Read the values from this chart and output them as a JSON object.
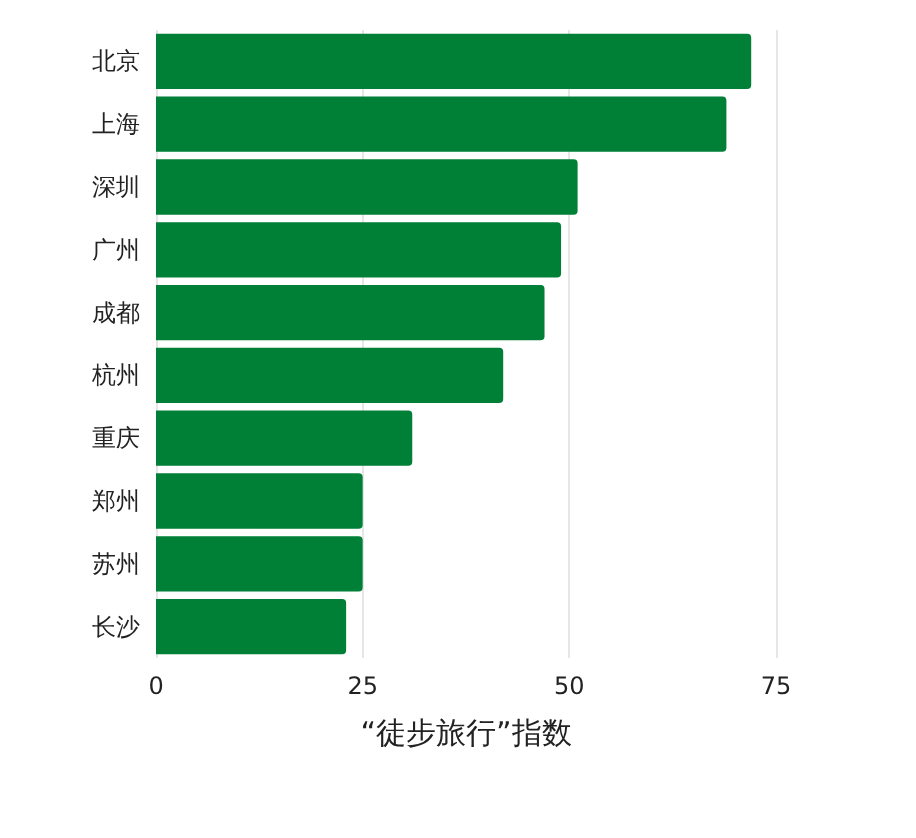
{
  "chart_data": {
    "type": "bar",
    "orientation": "horizontal",
    "xlabel": "“徒步旅行”指数",
    "categories": [
      "北京",
      "上海",
      "深圳",
      "广州",
      "成都",
      "杭州",
      "重庆",
      "郑州",
      "苏州",
      "长沙"
    ],
    "values": [
      72,
      69,
      51,
      49,
      47,
      42,
      31,
      25,
      25,
      23
    ],
    "color": "#007f37",
    "xlim": [
      0,
      75
    ],
    "xticks": [
      0,
      25,
      50,
      75
    ],
    "grid": "x"
  }
}
